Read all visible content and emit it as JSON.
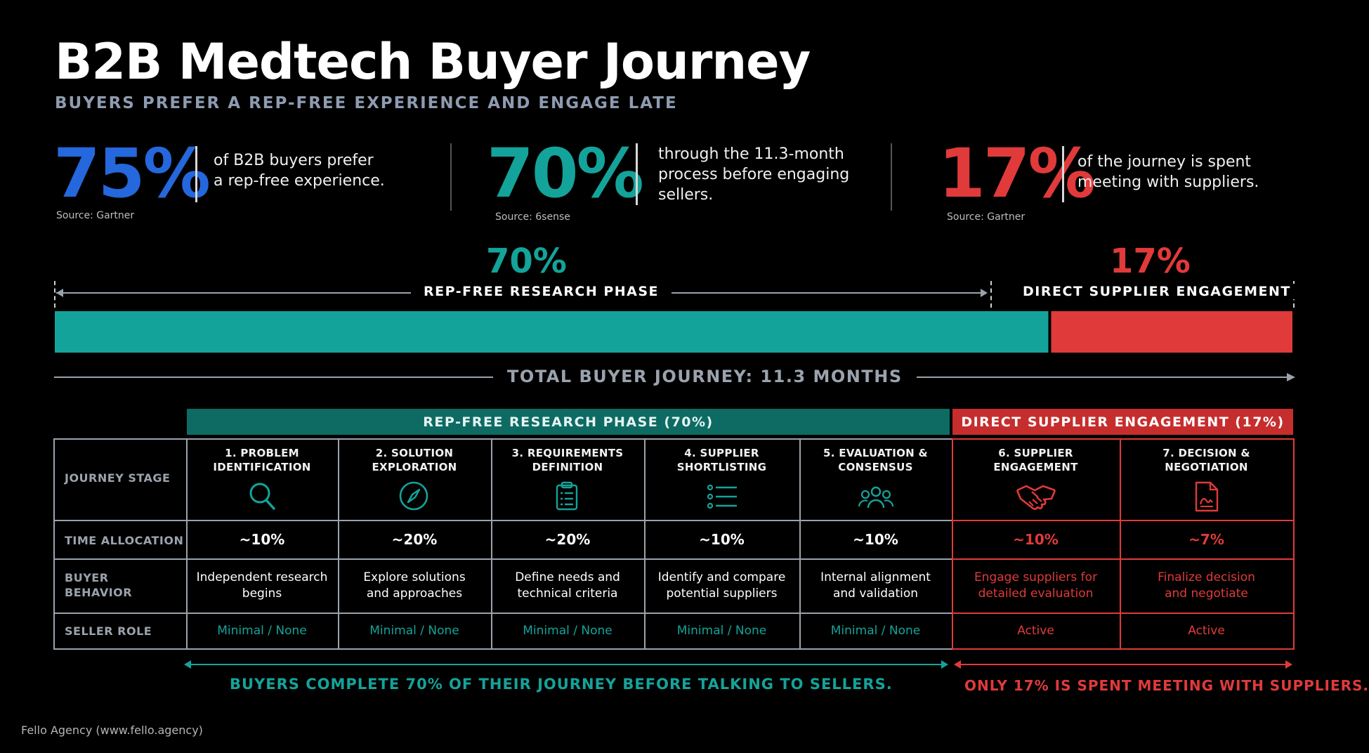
{
  "header": {
    "title": "B2B Medtech Buyer Journey",
    "subtitle": "BUYERS PREFER A REP-FREE EXPERIENCE AND ENGAGE LATE"
  },
  "stats": [
    {
      "value": "75%",
      "line1": "of B2B buyers prefer",
      "line2": "a rep-free experience.",
      "line3": "",
      "source": "Source: Gartner",
      "color": "#2567dc"
    },
    {
      "value": "70%",
      "line1": "through the 11.3-month",
      "line2": "process before engaging",
      "line3": "sellers.",
      "source": "Source: 6sense",
      "color": "#14a39a"
    },
    {
      "value": "17%",
      "line1": "of the journey is spent",
      "line2": "meeting with suppliers.",
      "line3": "",
      "source": "Source: Gartner",
      "color": "#e03a3a"
    }
  ],
  "chart_data": {
    "type": "bar",
    "orientation": "horizontal-stacked",
    "title": "TOTAL BUYER JOURNEY: 11.3 MONTHS",
    "series": [
      {
        "name": "REP-FREE RESEARCH PHASE",
        "value": 70,
        "label": "70%",
        "color": "#14a39a"
      },
      {
        "name": "DIRECT SUPPLIER ENGAGEMENT",
        "value": 17,
        "label": "17%",
        "color": "#e03a3a"
      }
    ]
  },
  "table": {
    "phase_headers": [
      {
        "label": "REP-FREE RESEARCH PHASE (70%)",
        "color": "#0e6b63"
      },
      {
        "label": "DIRECT SUPPLIER ENGAGEMENT (17%)",
        "color": "#c62e2e"
      }
    ],
    "row_labels": {
      "stage": "JOURNEY STAGE",
      "time": "TIME ALLOCATION",
      "behavior": "BUYER\nBEHAVIOR",
      "seller": "SELLER ROLE"
    },
    "columns": [
      {
        "stage": "1. PROBLEM\nIDENTIFICATION",
        "icon": "magnifier-icon",
        "time": "~10%",
        "behavior": "Independent research\nbegins",
        "seller": "Minimal / None",
        "phase": "rep-free"
      },
      {
        "stage": "2. SOLUTION\nEXPLORATION",
        "icon": "compass-icon",
        "time": "~20%",
        "behavior": "Explore solutions\nand approaches",
        "seller": "Minimal / None",
        "phase": "rep-free"
      },
      {
        "stage": "3. REQUIREMENTS\nDEFINITION",
        "icon": "clipboard-icon",
        "time": "~20%",
        "behavior": "Define needs and\ntechnical criteria",
        "seller": "Minimal / None",
        "phase": "rep-free"
      },
      {
        "stage": "4. SUPPLIER\nSHORTLISTING",
        "icon": "list-icon",
        "time": "~10%",
        "behavior": "Identify and compare\npotential suppliers",
        "seller": "Minimal / None",
        "phase": "rep-free"
      },
      {
        "stage": "5. EVALUATION &\nCONSENSUS",
        "icon": "team-icon",
        "time": "~10%",
        "behavior": "Internal alignment\nand validation",
        "seller": "Minimal / None",
        "phase": "rep-free"
      },
      {
        "stage": "6. SUPPLIER\nENGAGEMENT",
        "icon": "handshake-icon",
        "time": "~10%",
        "behavior": "Engage suppliers for\ndetailed evaluation",
        "seller": "Active",
        "phase": "supplier"
      },
      {
        "stage": "7. DECISION &\nNEGOTIATION",
        "icon": "signed-document-icon",
        "time": "~7%",
        "behavior": "Finalize decision\nand negotiate",
        "seller": "Active",
        "phase": "supplier"
      }
    ]
  },
  "footer": {
    "left_message": "BUYERS COMPLETE 70% OF THEIR JOURNEY BEFORE TALKING TO SELLERS.",
    "right_message": "ONLY 17% IS SPENT MEETING WITH SUPPLIERS.",
    "credit": "Fello Agency (www.fello.agency)"
  },
  "colors": {
    "teal": "#14a39a",
    "red": "#e03a3a",
    "blue": "#2567dc",
    "grid": "#9aa3ad"
  }
}
